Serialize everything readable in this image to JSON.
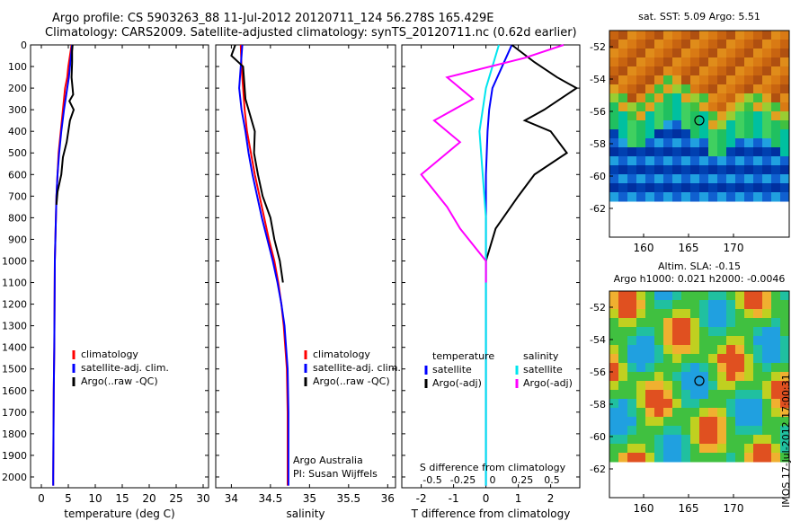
{
  "header": {
    "line1": "Argo profile: CS 5903263_88 11-Jul-2012 20120711_124 56.278S 165.429E",
    "line2": "Climatology: CARS2009. Satellite-adjusted climatology: synTS_20120711.nc (0.62d earlier)"
  },
  "colors": {
    "climatology": "#ff0000",
    "satellite": "#0000ff",
    "argo": "#000000",
    "salinity_sat": "#00e5ee",
    "salinity_argo": "#ff00ff"
  },
  "chart_data": [
    {
      "type": "line",
      "xlabel": "temperature (deg C)",
      "xticks": [
        0,
        5,
        10,
        15,
        20,
        25,
        30
      ],
      "xlim": [
        -2,
        31
      ],
      "ylim": [
        2050,
        0
      ],
      "yticks": [
        0,
        100,
        200,
        300,
        400,
        500,
        600,
        700,
        800,
        900,
        1000,
        1100,
        1200,
        1300,
        1400,
        1500,
        1600,
        1700,
        1800,
        1900,
        2000
      ],
      "legend": [
        "climatology",
        "satellite-adj. clim.",
        "Argo(..raw -QC)"
      ],
      "series": [
        {
          "name": "climatology",
          "x": [
            5.6,
            5.3,
            5.0,
            4.8,
            4.4,
            4.0,
            3.6,
            3.2,
            3.0,
            2.8,
            2.7,
            2.6,
            2.5,
            2.45,
            2.4,
            2.35,
            2.3,
            2.25,
            2.2,
            2.2
          ],
          "y": [
            0,
            50,
            100,
            150,
            200,
            300,
            400,
            500,
            600,
            700,
            800,
            900,
            1000,
            1200,
            1400,
            1500,
            1600,
            1800,
            2000,
            2040
          ]
        },
        {
          "name": "satellite-adj. clim.",
          "x": [
            5.7,
            5.5,
            5.3,
            5.1,
            4.8,
            4.2,
            3.7,
            3.3,
            3.0,
            2.8,
            2.7,
            2.6,
            2.5,
            2.45,
            2.4,
            2.35,
            2.3,
            2.25,
            2.2,
            2.2
          ],
          "y": [
            0,
            50,
            100,
            150,
            200,
            300,
            400,
            500,
            600,
            700,
            800,
            900,
            1000,
            1200,
            1400,
            1500,
            1600,
            1800,
            2000,
            2040
          ]
        },
        {
          "name": "Argo(..raw -QC)",
          "x": [
            5.8,
            5.7,
            5.7,
            5.6,
            5.9,
            5.2,
            6.0,
            5.3,
            4.7,
            4.0,
            3.7,
            3.0,
            2.8
          ],
          "y": [
            0,
            30,
            80,
            150,
            230,
            260,
            300,
            350,
            450,
            520,
            600,
            680,
            740
          ]
        }
      ]
    },
    {
      "type": "line",
      "xlabel": "salinity",
      "xticks": [
        34,
        34.5,
        35,
        35.5,
        36
      ],
      "xlim": [
        33.8,
        36.1
      ],
      "ylim": [
        2050,
        0
      ],
      "legend": [
        "climatology",
        "satellite-adj. clim.",
        "Argo(..raw -QC)"
      ],
      "annotations": [
        "Argo Australia",
        "PI: Susan Wijffels"
      ],
      "series": [
        {
          "name": "climatology",
          "x": [
            34.12,
            34.13,
            34.15,
            34.17,
            34.2,
            34.25,
            34.3,
            34.36,
            34.42,
            34.48,
            34.55,
            34.6,
            34.64,
            34.67,
            34.69,
            34.71,
            34.72,
            34.72
          ],
          "y": [
            0,
            100,
            200,
            300,
            400,
            500,
            600,
            700,
            800,
            900,
            1000,
            1100,
            1200,
            1300,
            1400,
            1500,
            1700,
            2040
          ]
        },
        {
          "name": "satellite-adj. clim.",
          "x": [
            34.14,
            34.12,
            34.1,
            34.13,
            34.18,
            34.22,
            34.27,
            34.33,
            34.39,
            34.46,
            34.53,
            34.59,
            34.64,
            34.68,
            34.7,
            34.72,
            34.73,
            34.73
          ],
          "y": [
            0,
            100,
            200,
            300,
            400,
            500,
            600,
            700,
            800,
            900,
            1000,
            1100,
            1200,
            1300,
            1400,
            1500,
            1700,
            2040
          ]
        },
        {
          "name": "Argo(..raw -QC)",
          "x": [
            34.05,
            34.0,
            34.15,
            34.18,
            34.22,
            34.3,
            34.29,
            34.34,
            34.4,
            34.5,
            34.55,
            34.62,
            34.66
          ],
          "y": [
            0,
            50,
            100,
            250,
            300,
            400,
            500,
            600,
            700,
            800,
            900,
            1000,
            1100
          ]
        }
      ]
    },
    {
      "type": "line",
      "xlabel": "T difference from climatology",
      "x2label": "S difference from climatology",
      "xticks": [
        -2,
        -1,
        0,
        1,
        2
      ],
      "x2ticks": [
        "-0.5",
        "-0.25",
        "0",
        "0.25",
        "0.5"
      ],
      "xlim": [
        -2.6,
        2.9
      ],
      "ylim": [
        2050,
        0
      ],
      "legend_left_title": "temperature",
      "legend_right_title": "salinity",
      "legend_left": [
        "satellite",
        "Argo(-adj)"
      ],
      "legend_right": [
        "satellite",
        "Argo(-adj)"
      ],
      "series": [
        {
          "name": "satellite",
          "x": [
            0.8,
            0.5,
            0.2,
            0.1,
            0.05,
            0,
            0,
            0,
            0,
            0
          ],
          "y": [
            0,
            100,
            200,
            300,
            400,
            600,
            800,
            1000,
            1500,
            2040
          ]
        },
        {
          "name": "Argo(-adj)",
          "x": [
            0.8,
            1.5,
            2.2,
            2.8,
            1.8,
            1.2,
            2.0,
            2.5,
            1.5,
            1.0,
            0.3,
            0
          ],
          "y": [
            0,
            80,
            150,
            200,
            300,
            350,
            400,
            500,
            600,
            700,
            850,
            1000
          ]
        },
        {
          "name": "satellite (S)",
          "x": [
            0.1,
            0.05,
            0,
            -0.05,
            0,
            0
          ],
          "y": [
            0,
            100,
            200,
            400,
            800,
            2040
          ]
        },
        {
          "name": "Argo(-adj) (S)",
          "x": [
            0.6,
            0.3,
            -0.3,
            -0.1,
            -0.4,
            -0.2,
            -0.5,
            -0.3,
            -0.2,
            0,
            0
          ],
          "y": [
            0,
            60,
            150,
            250,
            350,
            450,
            600,
            750,
            850,
            1000,
            1100
          ]
        }
      ]
    }
  ],
  "maps": [
    {
      "title": "sat. SST: 5.09 Argo: 5.51",
      "yticks": [
        "-52",
        "-54",
        "-56",
        "-58",
        "-60",
        "-62"
      ],
      "xticks": [
        "160",
        "165",
        "170"
      ]
    },
    {
      "title": "Altim. SLA: -0.15",
      "subtitle": "Argo h1000: 0.021 h2000: -0.0046",
      "yticks": [
        "-52",
        "-54",
        "-56",
        "-58",
        "-60",
        "-62"
      ],
      "xticks": [
        "160",
        "165",
        "170"
      ]
    }
  ],
  "stamp": "IMOS 17-Jul-2012 17:00:31"
}
